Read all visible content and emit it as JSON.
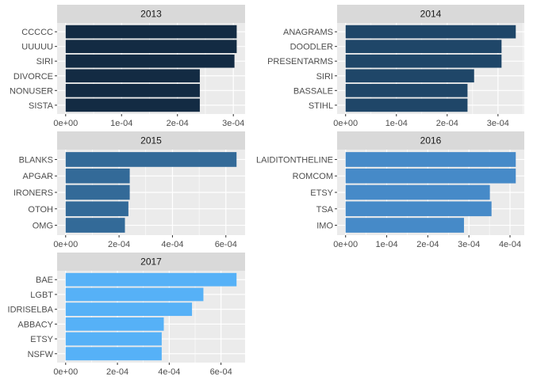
{
  "chart_data": [
    {
      "type": "bar",
      "orientation": "horizontal",
      "title": "2013",
      "categories": [
        "CCCCC",
        "UUUUU",
        "SIRI",
        "DIVORCE",
        "NONUSER",
        "SISTA"
      ],
      "values": [
        0.000306,
        0.000306,
        0.000302,
        0.00024,
        0.00024,
        0.00024
      ],
      "xlim": [
        -1.53e-05,
        0.000321
      ],
      "xticks": [
        0,
        0.0001,
        0.0002,
        0.0003
      ],
      "xtick_labels": [
        "0e+00",
        "1e-04",
        "2e-04",
        "3e-04"
      ],
      "grid": true,
      "color": "#132b43"
    },
    {
      "type": "bar",
      "orientation": "horizontal",
      "title": "2014",
      "categories": [
        "ANAGRAMS",
        "DOODLER",
        "PRESENTARMS",
        "SIRI",
        "BASSALE",
        "STIHL"
      ],
      "values": [
        0.000335,
        0.000307,
        0.000307,
        0.000253,
        0.00024,
        0.00024
      ],
      "xlim": [
        -1.675e-05,
        0.00035175
      ],
      "xticks": [
        0,
        0.0001,
        0.0002,
        0.0003
      ],
      "xtick_labels": [
        "0e+00",
        "1e-04",
        "2e-04",
        "3e-04"
      ],
      "grid": true,
      "color": "#1f4668"
    },
    {
      "type": "bar",
      "orientation": "horizontal",
      "title": "2015",
      "categories": [
        "BLANKS",
        "APGAR",
        "IRONERS",
        "OTOH",
        "OMG"
      ],
      "values": [
        0.00064,
        0.00024,
        0.00024,
        0.000235,
        0.000222
      ],
      "xlim": [
        -3.2e-05,
        0.000672
      ],
      "xticks": [
        0,
        0.0002,
        0.0004,
        0.0006
      ],
      "xtick_labels": [
        "0e+00",
        "2e-04",
        "4e-04",
        "6e-04"
      ],
      "grid": true,
      "color": "#336a98"
    },
    {
      "type": "bar",
      "orientation": "horizontal",
      "title": "2016",
      "categories": [
        "LAIDITONTHELINE",
        "ROMCOM",
        "ETSY",
        "TSA",
        "IMO"
      ],
      "values": [
        0.000414,
        0.000414,
        0.000351,
        0.000355,
        0.000288
      ],
      "xlim": [
        -2.07e-05,
        0.0004347
      ],
      "xticks": [
        0,
        0.0001,
        0.0002,
        0.0003,
        0.0004
      ],
      "xtick_labels": [
        "0e+00",
        "1e-04",
        "2e-04",
        "3e-04",
        "4e-04"
      ],
      "grid": true,
      "color": "#468ac8"
    },
    {
      "type": "bar",
      "orientation": "horizontal",
      "title": "2017",
      "categories": [
        "BAE",
        "LGBT",
        "IDRISELBA",
        "ABBACY",
        "ETSY",
        "NSFW"
      ],
      "values": [
        0.00066,
        0.000532,
        0.000488,
        0.000379,
        0.000371,
        0.000371
      ],
      "xlim": [
        -3.3e-05,
        0.000693
      ],
      "xticks": [
        0,
        0.0002,
        0.0004,
        0.0006
      ],
      "xtick_labels": [
        "0e+00",
        "2e-04",
        "4e-04",
        "6e-04"
      ],
      "grid": true,
      "color": "#56b1f7"
    }
  ]
}
